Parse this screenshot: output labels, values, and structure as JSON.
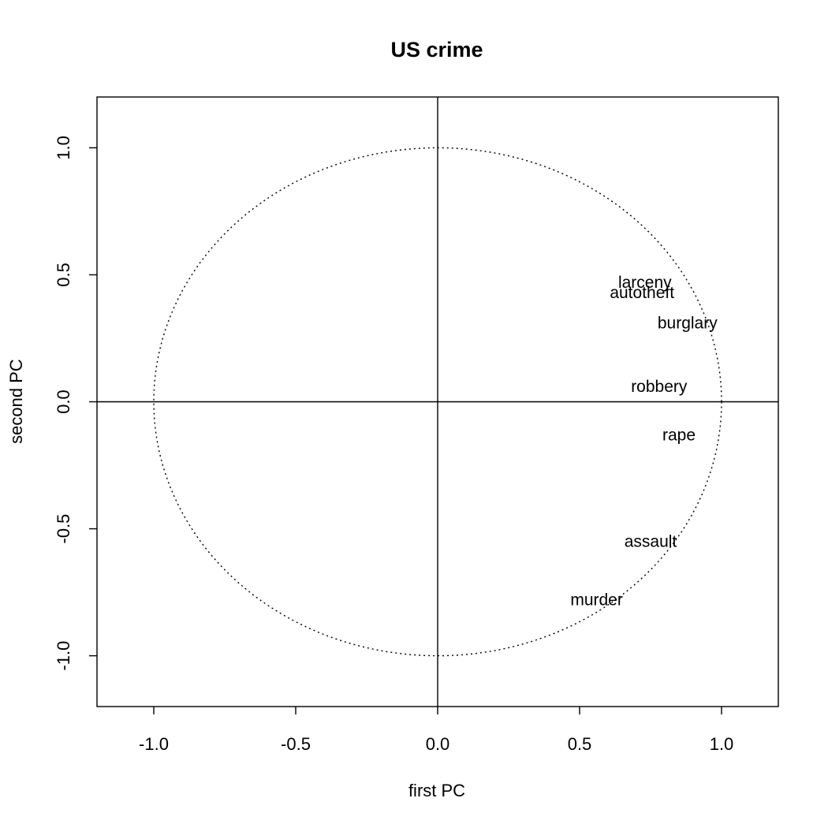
{
  "chart_data": {
    "type": "scatter",
    "title": "US crime",
    "xlabel": "first PC",
    "ylabel": "second PC",
    "xlim": [
      -1.2,
      1.2
    ],
    "ylim": [
      -1.2,
      1.2
    ],
    "x_ticks": [
      -1.0,
      -0.5,
      0.0,
      0.5,
      1.0
    ],
    "y_ticks": [
      -1.0,
      -0.5,
      0.0,
      0.5,
      1.0
    ],
    "x_tick_labels": [
      "-1.0",
      "-0.5",
      "0.0",
      "0.5",
      "1.0"
    ],
    "y_tick_labels": [
      "-1.0",
      "-0.5",
      "0.0",
      "0.5",
      "1.0"
    ],
    "reference_lines": {
      "x": 0,
      "y": 0
    },
    "unit_circle": {
      "radius": 1,
      "style": "dotted"
    },
    "grid": false,
    "points": [
      {
        "label": "larceny",
        "x": 0.73,
        "y": 0.47
      },
      {
        "label": "autotheft",
        "x": 0.72,
        "y": 0.43
      },
      {
        "label": "burglary",
        "x": 0.88,
        "y": 0.31
      },
      {
        "label": "robbery",
        "x": 0.78,
        "y": 0.06
      },
      {
        "label": "rape",
        "x": 0.85,
        "y": -0.13
      },
      {
        "label": "assault",
        "x": 0.75,
        "y": -0.55
      },
      {
        "label": "murder",
        "x": 0.56,
        "y": -0.78
      }
    ]
  }
}
